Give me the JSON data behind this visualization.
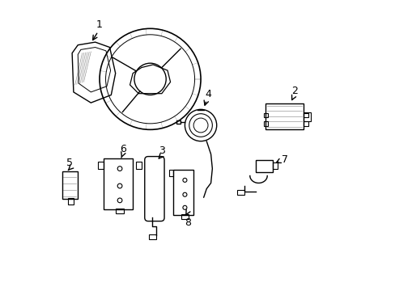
{
  "background_color": "#ffffff",
  "line_color": "#000000",
  "label_color": "#000000",
  "line_width": 1.0,
  "fig_width": 4.89,
  "fig_height": 3.6,
  "dpi": 100
}
